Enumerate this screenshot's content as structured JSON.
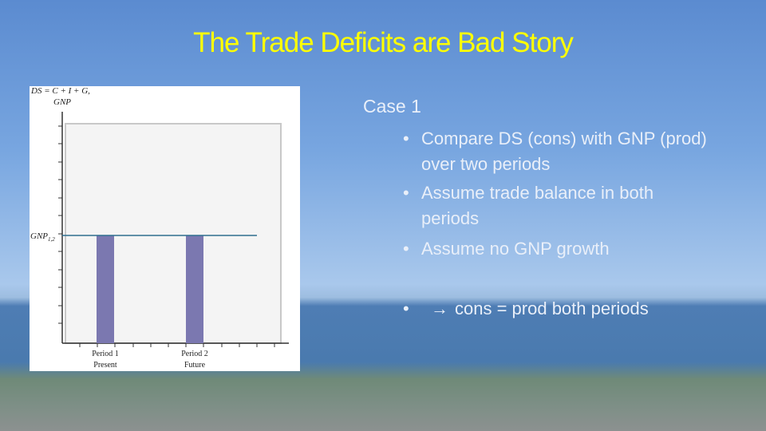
{
  "title": "The Trade Deficits are Bad Story",
  "figure": {
    "y_axis_label": [
      "DS = C + I + G,",
      "GNP"
    ],
    "line_label": {
      "text": "GNP",
      "subscript": "1,2"
    },
    "periods": [
      {
        "name": "Period 1",
        "label": "Present"
      },
      {
        "name": "Period 2",
        "label": "Future"
      }
    ]
  },
  "content": {
    "heading": "Case 1",
    "bullets": [
      "Compare DS (cons) with GNP (prod) over two periods",
      "Assume trade balance in both periods",
      "Assume no GNP growth"
    ],
    "conclusion": {
      "arrow": "→",
      "text": "cons = prod both periods"
    }
  }
}
